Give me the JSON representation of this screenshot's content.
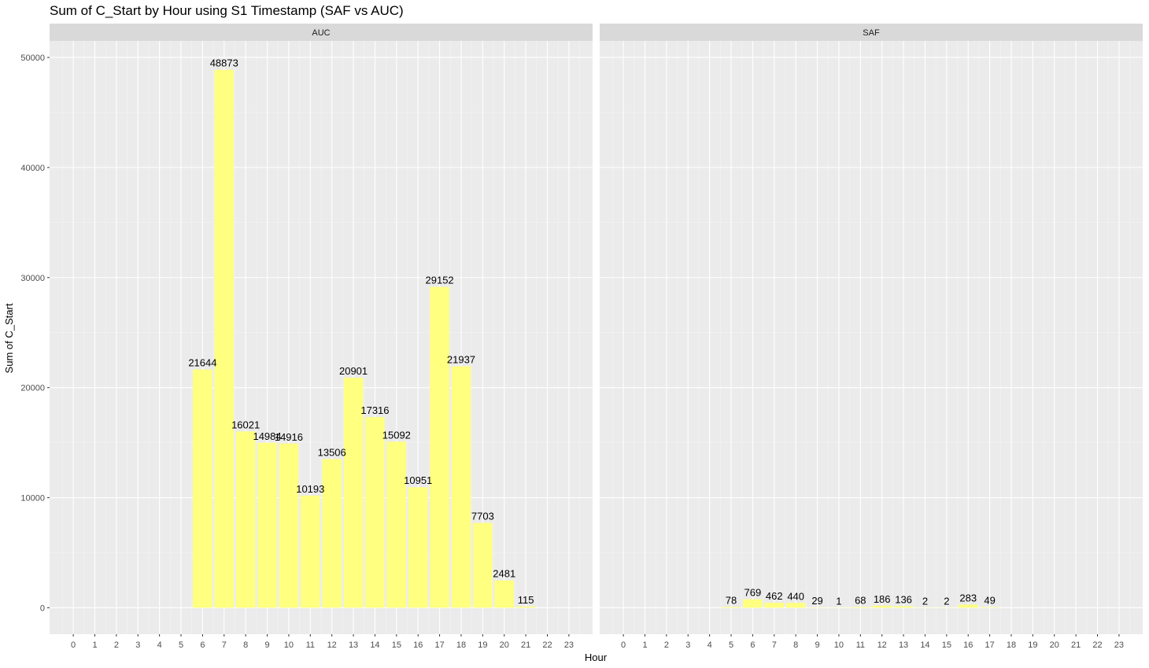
{
  "chart_data": {
    "type": "bar",
    "title": "Sum of C_Start by Hour using S1 Timestamp (SAF vs AUC)",
    "xlabel": "Hour",
    "ylabel": "Sum of C_Start",
    "x_ticks": [
      "0",
      "1",
      "2",
      "3",
      "4",
      "5",
      "6",
      "7",
      "8",
      "9",
      "10",
      "11",
      "12",
      "13",
      "14",
      "15",
      "16",
      "17",
      "18",
      "19",
      "20",
      "21",
      "22",
      "23"
    ],
    "y_ticks": [
      0,
      10000,
      20000,
      30000,
      40000,
      50000
    ],
    "y_tick_labels": [
      "0",
      "10000",
      "20000",
      "30000",
      "40000",
      "50000"
    ],
    "ylim": [
      -2400,
      51500
    ],
    "xlim": [
      -1.1,
      24.1
    ],
    "grid": true,
    "bar_color": "#FFFF80",
    "panels": [
      {
        "name": "AUC",
        "x": [
          6,
          7,
          8,
          9,
          10,
          11,
          12,
          13,
          14,
          15,
          16,
          17,
          18,
          19,
          20,
          21
        ],
        "values": [
          21644,
          48873,
          16021,
          14984,
          14916,
          10193,
          13506,
          20901,
          17316,
          15092,
          10951,
          29152,
          21937,
          7703,
          2481,
          115
        ],
        "labels": [
          "21644",
          "48873",
          "16021",
          "14984",
          "14916",
          "10193",
          "13506",
          "20901",
          "17316",
          "15092",
          "10951",
          "29152",
          "21937",
          "7703",
          "2481",
          "115"
        ]
      },
      {
        "name": "SAF",
        "x": [
          5,
          6,
          7,
          8,
          9,
          10,
          11,
          12,
          13,
          14,
          15,
          16,
          17
        ],
        "values": [
          78,
          769,
          462,
          440,
          29,
          1,
          68,
          186,
          136,
          2,
          2,
          283,
          49
        ],
        "labels": [
          "78",
          "769",
          "462",
          "440",
          "29",
          "1",
          "68",
          "186",
          "136",
          "2",
          "2",
          "283",
          "49"
        ]
      }
    ]
  }
}
